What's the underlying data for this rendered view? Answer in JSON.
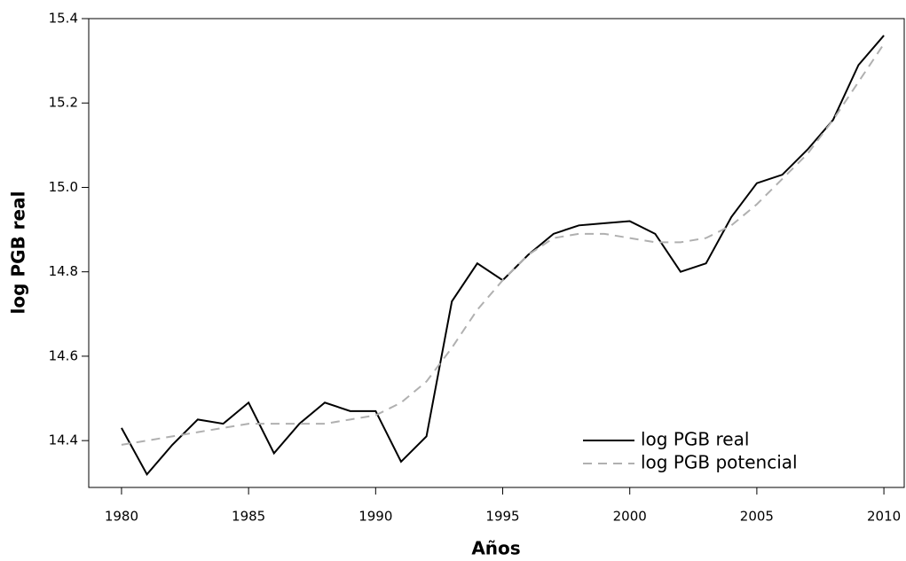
{
  "chart_data": {
    "type": "line",
    "x_label": "Años",
    "y_label": "log PGB real",
    "x": [
      1980,
      1981,
      1982,
      1983,
      1984,
      1985,
      1986,
      1987,
      1988,
      1989,
      1990,
      1991,
      1992,
      1993,
      1994,
      1995,
      1996,
      1997,
      1998,
      1999,
      2000,
      2001,
      2002,
      2003,
      2004,
      2005,
      2006,
      2007,
      2008,
      2009,
      2010
    ],
    "series": [
      {
        "name": "log PGB real",
        "color": "#000000",
        "dash": "solid",
        "values": [
          14.43,
          14.32,
          14.39,
          14.45,
          14.44,
          14.49,
          14.37,
          14.44,
          14.49,
          14.47,
          14.47,
          14.35,
          14.41,
          14.73,
          14.82,
          14.78,
          14.84,
          14.89,
          14.91,
          14.915,
          14.92,
          14.89,
          14.8,
          14.82,
          14.93,
          15.01,
          15.03,
          15.09,
          15.16,
          15.29,
          15.36
        ]
      },
      {
        "name": "log PGB potencial",
        "color": "#b0b0b0",
        "dash": "dashed",
        "values": [
          14.39,
          14.4,
          14.41,
          14.42,
          14.43,
          14.44,
          14.44,
          14.44,
          14.44,
          14.45,
          14.46,
          14.49,
          14.54,
          14.62,
          14.71,
          14.78,
          14.84,
          14.88,
          14.89,
          14.89,
          14.88,
          14.87,
          14.87,
          14.88,
          14.91,
          14.96,
          15.02,
          15.08,
          15.16,
          15.25,
          15.34
        ]
      }
    ],
    "xlim": [
      1978.71,
      2010.8
    ],
    "ylim": [
      14.289,
      15.4
    ],
    "xticks": [
      1980,
      1985,
      1990,
      1995,
      2000,
      2005,
      2010
    ],
    "yticks": [
      14.4,
      14.6,
      14.8,
      {
        "value": 15,
        "label": "15.0"
      },
      15.2,
      15.4
    ],
    "legend": "bottom-right"
  }
}
